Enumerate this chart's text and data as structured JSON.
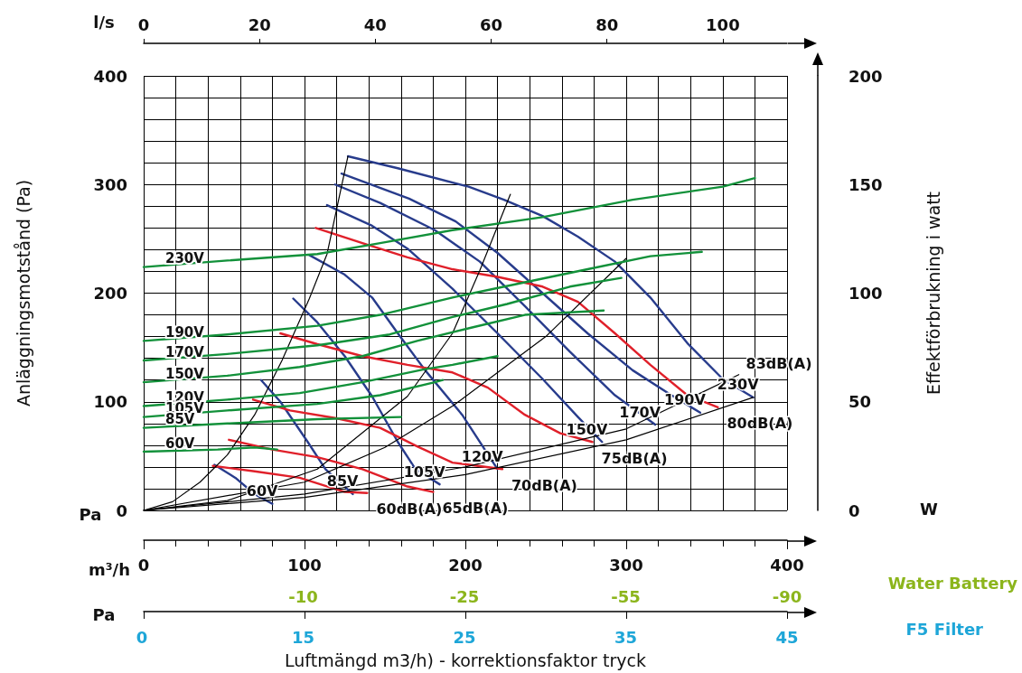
{
  "chart_data": {
    "type": "line",
    "xlabel": "Luftmängd m3/h) - korrektionsfaktor tryck",
    "ylabel": "Anläggningsmotstånd (Pa)",
    "y2label": "Effektförbrukning i watt",
    "xlim": [
      0,
      400
    ],
    "xticks": [
      0,
      100,
      200,
      300,
      400
    ],
    "ylim": [
      0,
      400
    ],
    "yticks": [
      0,
      100,
      200,
      300,
      400
    ],
    "y2lim": [
      0,
      200
    ],
    "y2ticks": [
      0,
      50,
      100,
      150,
      200
    ],
    "x2lim": [
      0,
      111.1
    ],
    "x2ticks": [
      0,
      20,
      40,
      60,
      80,
      100
    ],
    "annotations": [
      "l/s",
      "Pa",
      "m³/h",
      "W",
      "Water Battery",
      "-10",
      "-25",
      "-55",
      "-90",
      "Pa",
      "F5 Filter",
      "0",
      "15",
      "25",
      "35",
      "45"
    ],
    "grid": true,
    "legend": false,
    "marker": "none",
    "line_style": "solid",
    "series": [
      {
        "name": "230V",
        "color": "#283c8c",
        "x": [
          127,
          158,
          202,
          224,
          248,
          270,
          293,
          315,
          338,
          360,
          379
        ],
        "values": [
          326,
          315,
          298,
          286,
          271,
          252,
          229,
          196,
          154,
          121,
          104
        ]
      },
      {
        "name": "190V",
        "color": "#283c8c",
        "x": [
          123,
          165,
          194,
          220,
          248,
          276,
          304,
          327,
          346
        ],
        "values": [
          310,
          287,
          266,
          237,
          200,
          163,
          129,
          107,
          90
        ]
      },
      {
        "name": "170V",
        "color": "#283c8c",
        "x": [
          119,
          147,
          181,
          209,
          237,
          265,
          293,
          318
        ],
        "values": [
          300,
          283,
          258,
          229,
          188,
          146,
          106,
          79
        ]
      },
      {
        "name": "150V",
        "color": "#283c8c",
        "x": [
          114,
          142,
          164,
          192,
          220,
          248,
          270,
          285
        ],
        "values": [
          281,
          262,
          241,
          204,
          163,
          121,
          86,
          63
        ]
      },
      {
        "name": "120V",
        "color": "#283c8c",
        "x": [
          103,
          125,
          142,
          158,
          175,
          198,
          220
        ],
        "values": [
          235,
          217,
          196,
          163,
          129,
          88,
          38
        ]
      },
      {
        "name": "105V",
        "color": "#283c8c",
        "x": [
          93,
          108,
          125,
          142,
          158,
          169,
          184
        ],
        "values": [
          195,
          173,
          142,
          105,
          63,
          38,
          24
        ]
      },
      {
        "name": "85V",
        "color": "#283c8c",
        "x": [
          73,
          85,
          102,
          113,
          130
        ],
        "values": [
          120,
          100,
          63,
          38,
          15
        ]
      },
      {
        "name": "60V",
        "color": "#283c8c",
        "x": [
          44,
          57,
          69,
          80
        ],
        "values": [
          42,
          30,
          15,
          6
        ]
      },
      {
        "name": "80dB(A)",
        "color": "#e0202a",
        "x": [
          107,
          136,
          164,
          192,
          220,
          248,
          270,
          293,
          315,
          338,
          357
        ],
        "values": [
          260,
          246,
          233,
          222,
          215,
          206,
          192,
          163,
          134,
          106,
          95
        ]
      },
      {
        "name": "75dB(A)",
        "color": "#e0202a",
        "x": [
          85,
          108,
          136,
          164,
          192,
          214,
          237,
          259,
          279
        ],
        "values": [
          163,
          153,
          142,
          134,
          127,
          113,
          88,
          71,
          63
        ]
      },
      {
        "name": "70dB(A)",
        "color": "#e0202a",
        "x": [
          68,
          91,
          119,
          147,
          170,
          192,
          223
        ],
        "values": [
          102,
          92,
          85,
          76,
          59,
          44,
          38
        ]
      },
      {
        "name": "65dB(A)",
        "color": "#e0202a",
        "x": [
          53,
          80,
          108,
          136,
          164,
          180
        ],
        "values": [
          65,
          56,
          49,
          38,
          22,
          17
        ]
      },
      {
        "name": "60dB(A)",
        "color": "#e0202a",
        "x": [
          43,
          69,
          97,
          125,
          139
        ],
        "values": [
          41,
          36,
          30,
          17,
          16
        ]
      },
      {
        "name": "230V",
        "color": "#12913a",
        "axis": "y2",
        "x": [
          0,
          52,
          108,
          147,
          192,
          248,
          304,
          360,
          380
        ],
        "values": [
          112,
          115,
          118,
          123,
          129,
          135,
          143,
          149,
          153
        ]
      },
      {
        "name": "190V",
        "color": "#12913a",
        "axis": "y2",
        "x": [
          0,
          52,
          108,
          147,
          192,
          237,
          276,
          315,
          347
        ],
        "values": [
          78,
          81,
          85,
          90,
          98,
          105,
          111,
          117,
          119
        ]
      },
      {
        "name": "170V",
        "color": "#12913a",
        "axis": "y2",
        "x": [
          0,
          52,
          108,
          153,
          192,
          226,
          265,
          297
        ],
        "values": [
          69,
          72,
          76,
          81,
          89,
          95,
          103,
          107
        ]
      },
      {
        "name": "150V",
        "color": "#12913a",
        "axis": "y2",
        "x": [
          0,
          52,
          97,
          136,
          170,
          203,
          237,
          286
        ],
        "values": [
          59,
          62,
          66,
          71,
          78,
          84,
          90,
          92
        ]
      },
      {
        "name": "120V",
        "color": "#12913a",
        "axis": "y2",
        "x": [
          0,
          52,
          97,
          136,
          175,
          192,
          220
        ],
        "values": [
          48,
          51,
          54,
          59,
          65,
          67,
          71
        ]
      },
      {
        "name": "105V",
        "color": "#12913a",
        "axis": "y2",
        "x": [
          0,
          52,
          108,
          147,
          181,
          186
        ],
        "values": [
          43,
          46,
          49,
          53,
          59,
          60
        ]
      },
      {
        "name": "85V",
        "color": "#12913a",
        "axis": "y2",
        "x": [
          0,
          52,
          108,
          160
        ],
        "values": [
          38,
          40,
          42,
          43
        ]
      },
      {
        "name": "60V",
        "color": "#12913a",
        "axis": "y2",
        "x": [
          0,
          46,
          69,
          83
        ],
        "values": [
          27,
          28,
          29,
          28
        ]
      },
      {
        "color": "#000000",
        "x": [
          0,
          18,
          35,
          52,
          69,
          86,
          103,
          114,
          127
        ],
        "values": [
          0,
          8,
          26,
          51,
          88,
          138,
          195,
          236,
          326
        ]
      },
      {
        "color": "#000000",
        "x": [
          0,
          52,
          108,
          164,
          192,
          209,
          228
        ],
        "values": [
          0,
          9,
          38,
          105,
          163,
          221,
          291
        ]
      },
      {
        "color": "#000000",
        "x": [
          0,
          100,
          150,
          192,
          250,
          300
        ],
        "values": [
          0,
          26,
          58,
          96,
          160,
          232
        ]
      },
      {
        "name": "83dB(A)",
        "color": "#000000",
        "x": [
          0,
          100,
          200,
          300,
          370
        ],
        "values": [
          0,
          15,
          40,
          75,
          125
        ]
      },
      {
        "color": "#000000",
        "x": [
          0,
          100,
          200,
          300,
          379
        ],
        "values": [
          0,
          12,
          33,
          65,
          104
        ]
      }
    ]
  }
}
